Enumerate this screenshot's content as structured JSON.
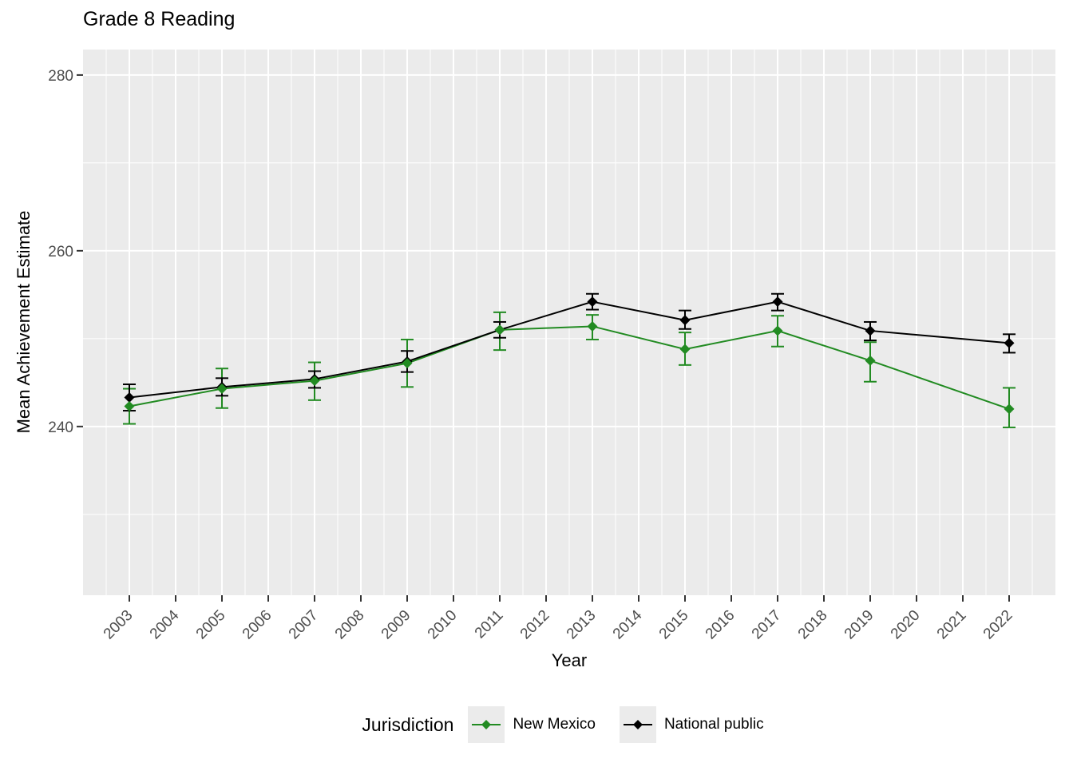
{
  "title": "Grade 8 Reading",
  "chart_data": {
    "type": "line",
    "title": "Grade 8 Reading",
    "xlabel": "Year",
    "ylabel": "Mean Achievement Estimate",
    "legend_title": "Jurisdiction",
    "legend_position": "bottom",
    "grid": true,
    "panel_bg": "#EBEBEB",
    "gridline_color": "#FFFFFF",
    "tick_label_color": "#4D4D4D",
    "tick_mark_color": "#333333",
    "x_ticks": [
      2003,
      2004,
      2005,
      2006,
      2007,
      2008,
      2009,
      2010,
      2011,
      2012,
      2013,
      2014,
      2015,
      2016,
      2017,
      2018,
      2019,
      2020,
      2021,
      2022
    ],
    "y_ticks": [
      240,
      260,
      280
    ],
    "y_minor_ticks": [
      230,
      250,
      270
    ],
    "xlim": [
      2002,
      2023
    ],
    "ylim": [
      220.8,
      282.9
    ],
    "x": [
      2003,
      2005,
      2007,
      2009,
      2011,
      2013,
      2015,
      2017,
      2019,
      2022
    ],
    "series": [
      {
        "name": "New Mexico",
        "color": "#228B22",
        "values": [
          242.3,
          244.3,
          245.2,
          247.2,
          251.0,
          251.4,
          248.8,
          250.9,
          247.5,
          242.0
        ],
        "err_low": [
          240.3,
          242.1,
          243.0,
          244.5,
          248.7,
          249.9,
          247.0,
          249.1,
          245.1,
          239.9
        ],
        "err_high": [
          244.3,
          246.6,
          247.3,
          249.9,
          253.0,
          252.7,
          250.7,
          252.6,
          249.6,
          244.4
        ]
      },
      {
        "name": "National public",
        "color": "#000000",
        "values": [
          243.3,
          244.5,
          245.4,
          247.4,
          251.0,
          254.2,
          252.1,
          254.2,
          250.9,
          249.5
        ],
        "err_low": [
          241.8,
          243.5,
          244.4,
          246.2,
          250.1,
          253.3,
          251.1,
          253.2,
          249.8,
          248.4
        ],
        "err_high": [
          244.8,
          245.5,
          246.3,
          248.6,
          251.9,
          255.1,
          253.2,
          255.1,
          251.9,
          250.5
        ]
      }
    ]
  }
}
